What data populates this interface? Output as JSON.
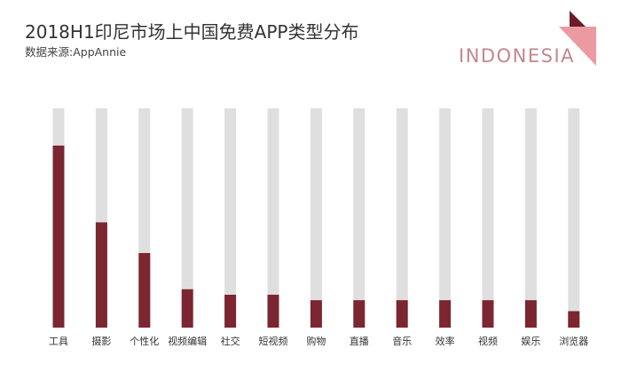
{
  "header": {
    "title": "2018H1印尼市场上中国免费APP类型分布",
    "subtitle": "数据来源:AppAnnie",
    "country": "INDONESIA"
  },
  "colors": {
    "bar": "#7b2630",
    "track": "#dfdfdf",
    "accent": "#ec9aa2",
    "accent_dark": "#6b1c28"
  },
  "icons": {
    "corner": "corner-triangle-icon"
  },
  "chart_data": {
    "type": "bar",
    "title": "2018H1印尼市场上中国免费APP类型分布",
    "categories": [
      "工具",
      "摄影",
      "个性化",
      "视频编辑",
      "社交",
      "短视频",
      "购物",
      "直播",
      "音乐",
      "效率",
      "视频",
      "娱乐",
      "浏览器"
    ],
    "values": [
      83,
      48,
      34,
      17.5,
      15,
      15,
      12.5,
      12.5,
      12.5,
      12.5,
      12.5,
      12.5,
      7.5
    ],
    "ylim": [
      0,
      100
    ],
    "grid": false,
    "legend": "none"
  }
}
